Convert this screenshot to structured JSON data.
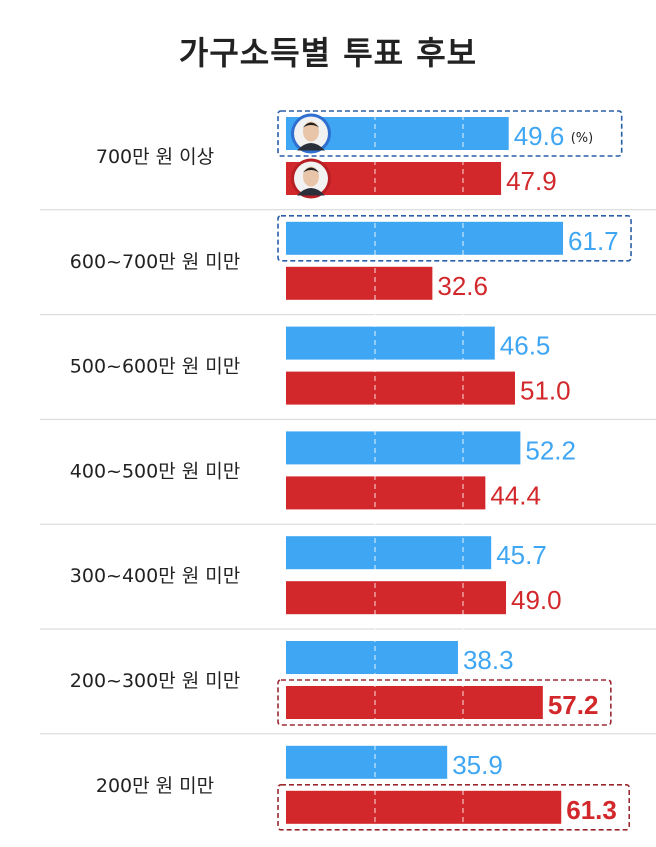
{
  "chart_data": {
    "type": "bar",
    "title": "가구소득별 투표 후보",
    "unit": "(%)",
    "categories": [
      "700만 원 이상",
      "600~700만 원 미만",
      "500~600만 원 미만",
      "400~500만 원 미만",
      "300~400만 원 미만",
      "200~300만 원 미만",
      "200만 원 미만"
    ],
    "series": [
      {
        "color": "#3fa6f4",
        "label_color": "#3fa6f4",
        "values": [
          49.6,
          61.7,
          46.5,
          52.2,
          45.7,
          38.3,
          35.9
        ]
      },
      {
        "color": "#d2282b",
        "label_color": "#d2282b",
        "values": [
          47.9,
          32.6,
          51.0,
          44.4,
          49.0,
          57.2,
          61.3
        ]
      }
    ],
    "highlighted": [
      {
        "category": "700만 원 이상",
        "series_index": 0
      },
      {
        "category": "600~700만 원 미만",
        "series_index": 0
      },
      {
        "category": "200~300만 원 미만",
        "series_index": 1
      },
      {
        "category": "200만 원 미만",
        "series_index": 1
      }
    ],
    "legend_avatars": [
      "blue-candidate-avatar",
      "red-candidate-avatar"
    ],
    "grid": true
  }
}
